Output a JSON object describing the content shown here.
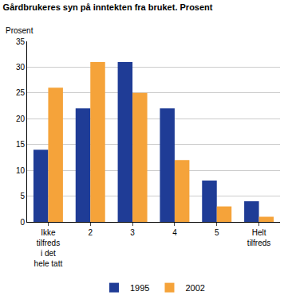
{
  "chart_data": {
    "type": "bar",
    "title": "Gårdbrukeres syn på inntekten fra bruket. Prosent",
    "y_label": "Prosent",
    "categories": [
      "Ikke tilfreds i det hele tatt",
      "2",
      "3",
      "4",
      "5",
      "Helt tilfreds"
    ],
    "series": [
      {
        "name": "1995",
        "color": "#1f3c96",
        "values": [
          14,
          22,
          31,
          22,
          8,
          4
        ]
      },
      {
        "name": "2002",
        "color": "#f5a33a",
        "values": [
          26,
          31,
          25,
          12,
          3,
          1
        ]
      }
    ],
    "ylim": [
      0,
      35
    ],
    "yticks": [
      0,
      5,
      10,
      15,
      20,
      25,
      30,
      35
    ],
    "grid": true,
    "legend": "bottom"
  }
}
